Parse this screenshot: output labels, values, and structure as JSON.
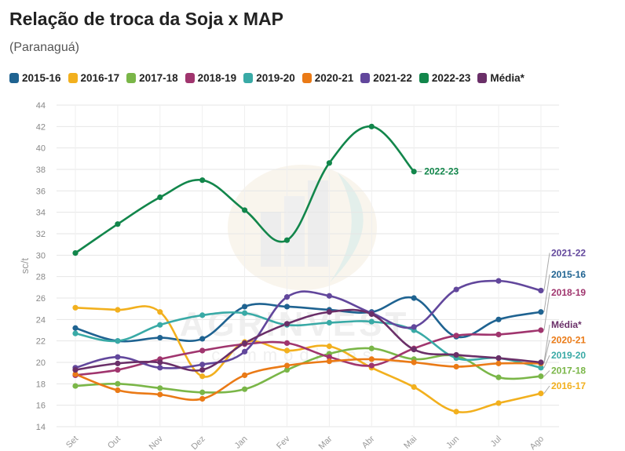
{
  "title": "Relação de troca da Soja x MAP",
  "subtitle": "(Paranaguá)",
  "watermark": {
    "word1": "AGRINVEST",
    "word2": "commodities"
  },
  "chart_data": {
    "type": "line",
    "ylabel": "sc/t",
    "xlabel": "",
    "ylim": [
      14,
      44
    ],
    "yticks": [
      14,
      16,
      18,
      20,
      22,
      24,
      26,
      28,
      30,
      32,
      34,
      36,
      38,
      40,
      42,
      44
    ],
    "categories": [
      "Set",
      "Out",
      "Nov",
      "Dez",
      "Jan",
      "Fev",
      "Mar",
      "Abr",
      "Mai",
      "Jun",
      "Jul",
      "Ago"
    ],
    "grid": true,
    "legend_position": "top",
    "series": [
      {
        "name": "2015-16",
        "color": "#1f6391",
        "values": [
          23.2,
          22.0,
          22.3,
          22.2,
          25.2,
          25.2,
          24.9,
          24.7,
          26.0,
          22.4,
          24.0,
          24.7
        ]
      },
      {
        "name": "2016-17",
        "color": "#f2b01e",
        "values": [
          25.1,
          24.9,
          24.7,
          18.7,
          21.9,
          21.1,
          21.5,
          19.5,
          17.7,
          15.4,
          16.2,
          17.1
        ]
      },
      {
        "name": "2017-18",
        "color": "#7ab648",
        "values": [
          17.8,
          18.0,
          17.6,
          17.2,
          17.5,
          19.3,
          20.8,
          21.3,
          20.3,
          20.6,
          18.6,
          18.7
        ]
      },
      {
        "name": "2018-19",
        "color": "#a0356e",
        "values": [
          18.8,
          19.3,
          20.3,
          21.1,
          21.7,
          21.8,
          20.5,
          19.7,
          21.3,
          22.5,
          22.6,
          23.0
        ]
      },
      {
        "name": "2019-20",
        "color": "#39aaa6",
        "values": [
          22.7,
          22.0,
          23.5,
          24.4,
          24.6,
          23.5,
          23.7,
          23.8,
          23.0,
          20.4,
          20.4,
          19.5
        ]
      },
      {
        "name": "2020-21",
        "color": "#ea7a16",
        "values": [
          18.9,
          17.4,
          17.0,
          16.6,
          18.8,
          19.7,
          20.1,
          20.3,
          20.0,
          19.6,
          19.9,
          19.9
        ]
      },
      {
        "name": "2021-22",
        "color": "#62479c",
        "values": [
          19.5,
          20.5,
          19.5,
          19.8,
          21.0,
          26.1,
          26.2,
          24.6,
          23.3,
          26.8,
          27.6,
          26.7
        ]
      },
      {
        "name": "2022-23",
        "color": "#12864b",
        "values": [
          30.2,
          32.9,
          35.4,
          37.0,
          34.2,
          31.4,
          38.6,
          42.0,
          37.8,
          null,
          null,
          null
        ]
      },
      {
        "name": "Média*",
        "color": "#6a2f68",
        "values": [
          19.3,
          19.9,
          20.0,
          19.3,
          21.8,
          23.6,
          24.7,
          24.5,
          21.2,
          20.7,
          20.4,
          20.0
        ]
      }
    ],
    "end_labels": [
      {
        "series": "2022-23",
        "text": "2022-23"
      },
      {
        "series": "2021-22",
        "text": "2021-22"
      },
      {
        "series": "2015-16",
        "text": "2015-16"
      },
      {
        "series": "2018-19",
        "text": "2018-19"
      },
      {
        "series": "Média*",
        "text": "Média*"
      },
      {
        "series": "2020-21",
        "text": "2020-21"
      },
      {
        "series": "2019-20",
        "text": "2019-20"
      },
      {
        "series": "2017-18",
        "text": "2017-18"
      },
      {
        "series": "2016-17",
        "text": "2016-17"
      }
    ]
  }
}
